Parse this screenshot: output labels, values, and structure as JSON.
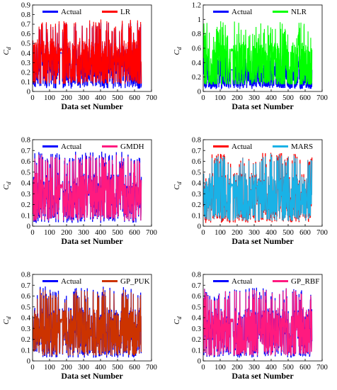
{
  "chart_data": [
    {
      "type": "line",
      "xlabel": "Data set Number",
      "ylabel": "C",
      "ylabel_sub": "d",
      "xlim": [
        0,
        700
      ],
      "ylim": [
        0,
        0.9
      ],
      "xticks": [
        "0",
        "100",
        "200",
        "300",
        "400",
        "500",
        "600",
        "700"
      ],
      "yticks": [
        "0",
        "0.1",
        "0.2",
        "0.3",
        "0.4",
        "0.5",
        "0.6",
        "0.7",
        "0.8",
        "0.9"
      ],
      "n_points": 640,
      "legend": "top",
      "series": [
        {
          "name": "Actual",
          "color": "#0000ff",
          "range": [
            0.03,
            0.72
          ],
          "mean": 0.3
        },
        {
          "name": "LR",
          "color": "#ff0000",
          "range": [
            0.08,
            0.75
          ],
          "mean": 0.33
        }
      ]
    },
    {
      "type": "line",
      "xlabel": "Data set Number",
      "ylabel": "C",
      "ylabel_sub": "d",
      "xlim": [
        0,
        700
      ],
      "ylim": [
        0,
        1.2
      ],
      "xticks": [
        "0",
        "100",
        "200",
        "300",
        "400",
        "500",
        "600",
        "700"
      ],
      "yticks": [
        "0",
        "0.2",
        "0.4",
        "0.6",
        "0.8",
        "1",
        "1.2"
      ],
      "n_points": 640,
      "legend": "top",
      "series": [
        {
          "name": "Actual",
          "color": "#0000ff",
          "range": [
            0.03,
            0.5
          ],
          "mean": 0.2
        },
        {
          "name": "NLR",
          "color": "#00ff00",
          "range": [
            0.1,
            1.02
          ],
          "mean": 0.38
        }
      ]
    },
    {
      "type": "line",
      "xlabel": "Data set Number",
      "ylabel": "C",
      "ylabel_sub": "d",
      "xlim": [
        0,
        700
      ],
      "ylim": [
        0,
        0.8
      ],
      "xticks": [
        "0",
        "100",
        "200",
        "300",
        "400",
        "500",
        "600",
        "700"
      ],
      "yticks": [
        "0",
        "0.1",
        "0.2",
        "0.3",
        "0.4",
        "0.5",
        "0.6",
        "0.7",
        "0.8"
      ],
      "n_points": 640,
      "legend": "top",
      "series": [
        {
          "name": "Actual",
          "color": "#0000ff",
          "range": [
            0.03,
            0.69
          ],
          "mean": 0.28
        },
        {
          "name": "GMDH",
          "color": "#ff1a7f",
          "range": [
            0.05,
            0.66
          ],
          "mean": 0.28
        }
      ]
    },
    {
      "type": "line",
      "xlabel": "Data set Number",
      "ylabel": "C",
      "ylabel_sub": "d",
      "xlim": [
        0,
        700
      ],
      "ylim": [
        0,
        0.8
      ],
      "xticks": [
        "0",
        "100",
        "200",
        "300",
        "400",
        "500",
        "600",
        "700"
      ],
      "yticks": [
        "0",
        "0.1",
        "0.2",
        "0.3",
        "0.4",
        "0.5",
        "0.6",
        "0.7",
        "0.8"
      ],
      "n_points": 640,
      "legend": "top",
      "series": [
        {
          "name": "Actual",
          "color": "#ff0000",
          "range": [
            0.03,
            0.69
          ],
          "mean": 0.28
        },
        {
          "name": "MARS",
          "color": "#1ab2e6",
          "range": [
            0.05,
            0.67
          ],
          "mean": 0.28
        }
      ]
    },
    {
      "type": "line",
      "xlabel": "Data set Number",
      "ylabel": "C",
      "ylabel_sub": "d",
      "xlim": [
        0,
        700
      ],
      "ylim": [
        0,
        0.8
      ],
      "xticks": [
        "0",
        "100",
        "200",
        "300",
        "400",
        "500",
        "600",
        "700"
      ],
      "yticks": [
        "0",
        "0.1",
        "0.2",
        "0.3",
        "0.4",
        "0.5",
        "0.6",
        "0.7",
        "0.8"
      ],
      "n_points": 640,
      "legend": "top",
      "series": [
        {
          "name": "Actual",
          "color": "#0000ff",
          "range": [
            0.03,
            0.69
          ],
          "mean": 0.28
        },
        {
          "name": "GP_PUK",
          "color": "#cc3300",
          "range": [
            0.05,
            0.67
          ],
          "mean": 0.28
        }
      ]
    },
    {
      "type": "line",
      "xlabel": "Data set Number",
      "ylabel": "C",
      "ylabel_sub": "d",
      "xlim": [
        0,
        700
      ],
      "ylim": [
        0,
        0.8
      ],
      "xticks": [
        "0",
        "100",
        "200",
        "300",
        "400",
        "500",
        "600",
        "700"
      ],
      "yticks": [
        "0",
        "0.1",
        "0.2",
        "0.3",
        "0.4",
        "0.5",
        "0.6",
        "0.7",
        "0.8"
      ],
      "n_points": 640,
      "legend": "top",
      "series": [
        {
          "name": "Actual",
          "color": "#0000ff",
          "range": [
            0.03,
            0.68
          ],
          "mean": 0.28
        },
        {
          "name": "GP_RBF",
          "color": "#ff1a7f",
          "range": [
            0.05,
            0.67
          ],
          "mean": 0.28
        }
      ]
    }
  ]
}
